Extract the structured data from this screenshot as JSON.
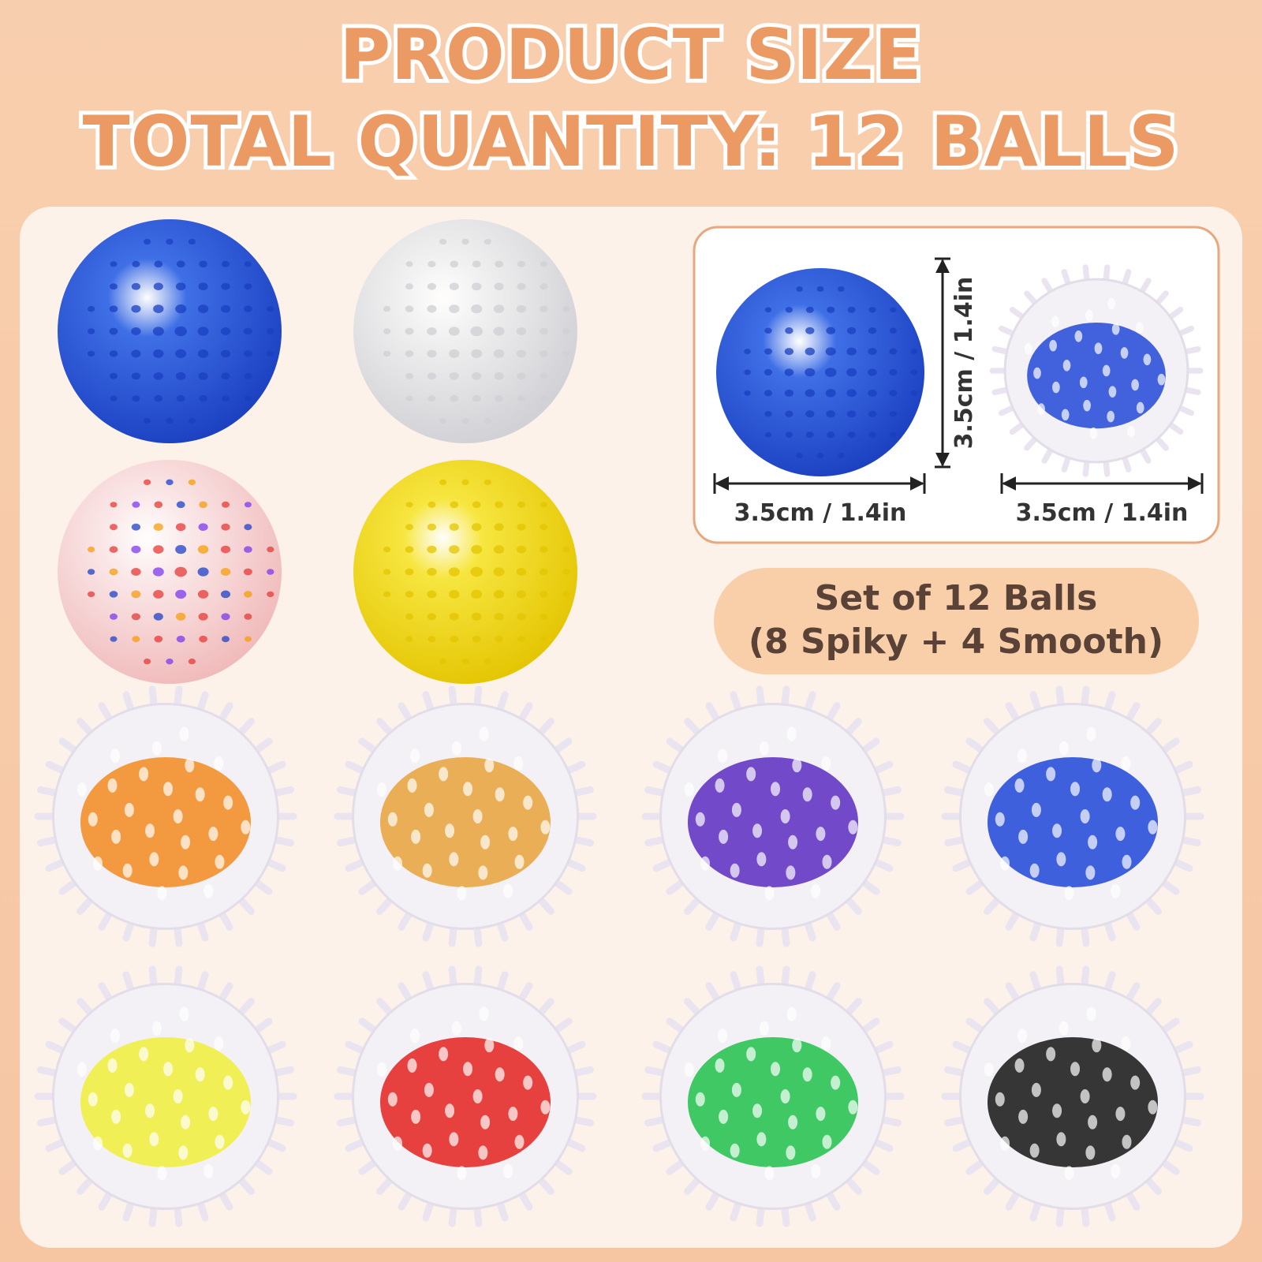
{
  "header": {
    "title": "PRODUCT SIZE",
    "subtitle": "TOTAL QUANTITY: 12 BALLS"
  },
  "size_box": {
    "height_label": "3.5cm / 1.4in",
    "smooth_width_label": "3.5cm / 1.4in",
    "spiky_width_label": "3.5cm / 1.4in"
  },
  "badge": {
    "lines": [
      "Set of 12 Balls",
      "(8 Spiky + 4 Smooth)"
    ]
  }
}
